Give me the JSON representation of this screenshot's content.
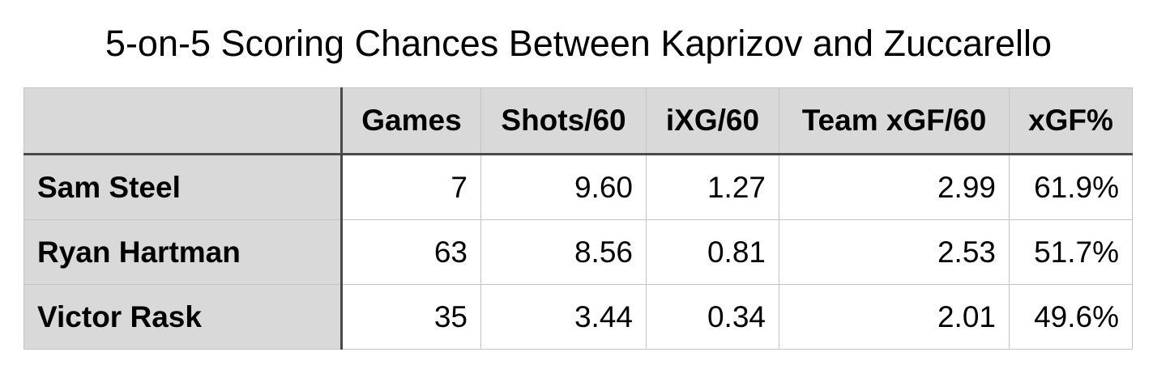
{
  "chart_data": {
    "type": "table",
    "title": "5-on-5 Scoring Chances Between Kaprizov and Zuccarello",
    "columns": [
      "",
      "Games",
      "Shots/60",
      "iXG/60",
      "Team xGF/60",
      "xGF%"
    ],
    "rows": [
      {
        "player": "Sam Steel",
        "values": [
          "7",
          "9.60",
          "1.27",
          "2.99",
          "61.9%"
        ]
      },
      {
        "player": "Ryan Hartman",
        "values": [
          "63",
          "8.56",
          "0.81",
          "2.53",
          "51.7%"
        ]
      },
      {
        "player": "Victor Rask",
        "values": [
          "35",
          "3.44",
          "0.34",
          "2.01",
          "49.6%"
        ]
      }
    ]
  }
}
